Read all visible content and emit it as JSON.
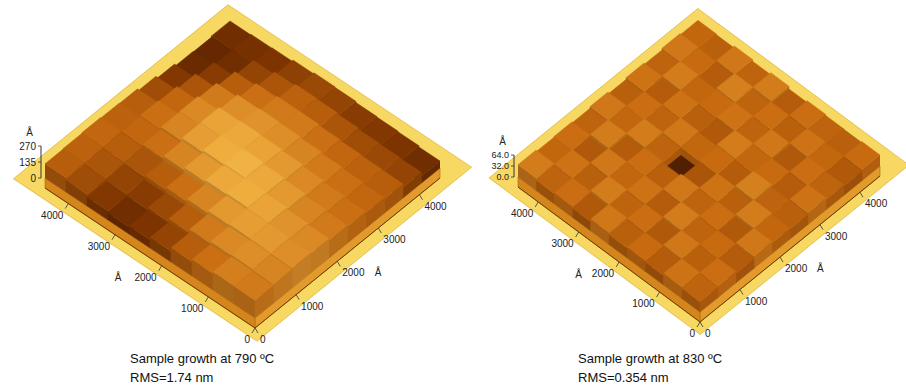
{
  "chart_data": [
    {
      "type": "surface",
      "title": "Sample growth at 790 ºC",
      "subtitle": "RMS=1.74 nm",
      "x_label": "Å",
      "y_label": "Å",
      "z_label": "Å",
      "xlim": [
        0,
        4500
      ],
      "xticks": [
        0,
        1000,
        2000,
        3000,
        4000
      ],
      "ylim": [
        0,
        4500
      ],
      "yticks": [
        0,
        1000,
        2000,
        3000,
        4000
      ],
      "zlim": [
        0,
        270
      ],
      "zticks": [
        0,
        135,
        270
      ],
      "z": [
        [
          150,
          160,
          170,
          165,
          150,
          140,
          130,
          120,
          90,
          60
        ],
        [
          155,
          170,
          180,
          175,
          160,
          150,
          140,
          125,
          95,
          70
        ],
        [
          140,
          165,
          185,
          190,
          180,
          165,
          150,
          130,
          100,
          75
        ],
        [
          120,
          150,
          180,
          200,
          195,
          180,
          160,
          140,
          110,
          80
        ],
        [
          90,
          120,
          160,
          195,
          205,
          190,
          170,
          150,
          120,
          90
        ],
        [
          70,
          95,
          140,
          180,
          200,
          195,
          175,
          150,
          125,
          95
        ],
        [
          60,
          80,
          120,
          160,
          185,
          190,
          170,
          140,
          110,
          85
        ],
        [
          75,
          90,
          110,
          140,
          160,
          165,
          150,
          120,
          90,
          70
        ],
        [
          100,
          110,
          120,
          130,
          140,
          130,
          110,
          80,
          60,
          65
        ],
        [
          120,
          125,
          130,
          125,
          120,
          100,
          75,
          55,
          50,
          60
        ]
      ]
    },
    {
      "type": "surface",
      "title": "Sample growth at 830 ºC",
      "subtitle": "RMS=0.354 nm",
      "x_label": "Å",
      "y_label": "Å",
      "z_label": "Å",
      "xlim": [
        0,
        4500
      ],
      "xticks": [
        0,
        1000,
        2000,
        3000,
        4000
      ],
      "ylim": [
        0,
        4500
      ],
      "yticks": [
        0,
        1000,
        2000,
        3000,
        4000
      ],
      "zlim": [
        0,
        64
      ],
      "zticks": [
        {
          "value": 0,
          "label": "0.0"
        },
        {
          "value": 32,
          "label": "32.0"
        },
        {
          "value": 64,
          "label": "64.0"
        }
      ],
      "z": [
        [
          30,
          33,
          28,
          35,
          31,
          29,
          34,
          30,
          27,
          32
        ],
        [
          34,
          29,
          32,
          27,
          36,
          30,
          28,
          33,
          31,
          29
        ],
        [
          28,
          35,
          30,
          33,
          29,
          37,
          32,
          27,
          34,
          30
        ],
        [
          32,
          27,
          36,
          30,
          34,
          28,
          31,
          35,
          29,
          33
        ],
        [
          29,
          33,
          28,
          35,
          26,
          32,
          36,
          30,
          33,
          28
        ],
        [
          35,
          30,
          34,
          29,
          8,
          31,
          27,
          34,
          30,
          36
        ],
        [
          27,
          36,
          31,
          33,
          30,
          35,
          29,
          32,
          37,
          30
        ],
        [
          33,
          29,
          35,
          28,
          36,
          30,
          34,
          31,
          28,
          35
        ],
        [
          30,
          34,
          27,
          36,
          31,
          33,
          28,
          36,
          32,
          29
        ],
        [
          36,
          31,
          33,
          30,
          35,
          29,
          34,
          30,
          35,
          31
        ]
      ]
    }
  ]
}
